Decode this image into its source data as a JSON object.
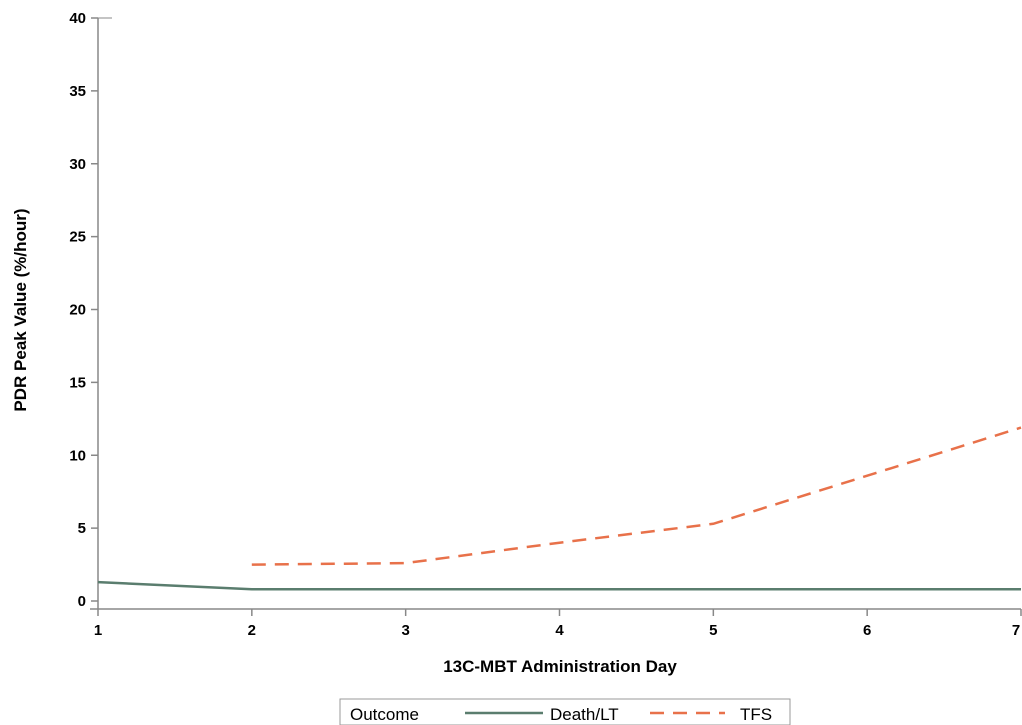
{
  "chart_data": {
    "type": "line",
    "title": "",
    "xlabel": "13C-MBT Administration Day",
    "ylabel": "PDR Peak Value (%/hour)",
    "xlim": [
      1,
      7
    ],
    "ylim": [
      0,
      40
    ],
    "x_ticks": [
      "1",
      "2",
      "3",
      "4",
      "5",
      "6",
      "7"
    ],
    "y_ticks": [
      "0",
      "5",
      "10",
      "15",
      "20",
      "25",
      "30",
      "35",
      "40"
    ],
    "grid": false,
    "legend": {
      "title": "Outcome",
      "placement": "bottom-center"
    },
    "series": [
      {
        "name": "Death/LT",
        "style": "solid",
        "color": "#5a7d6e",
        "x": [
          1,
          2,
          3,
          4,
          5,
          6,
          7
        ],
        "y": [
          1.3,
          0.8,
          0.8,
          0.8,
          0.8,
          0.8,
          0.8
        ]
      },
      {
        "name": "TFS",
        "style": "dashed",
        "color": "#e8714a",
        "x": [
          2,
          3,
          4,
          5,
          6,
          7
        ],
        "y": [
          2.5,
          2.6,
          4.0,
          5.3,
          8.6,
          11.9
        ]
      }
    ]
  }
}
